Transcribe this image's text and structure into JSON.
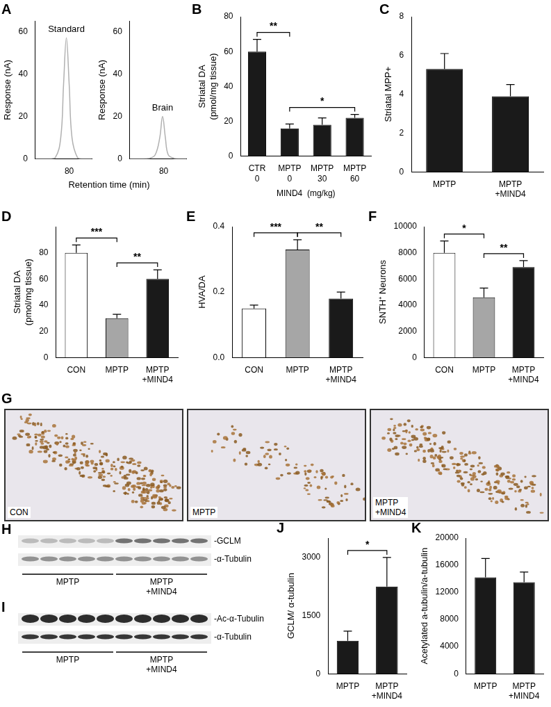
{
  "chart_data": [
    {
      "panel": "A",
      "type": "line",
      "annotation": "Standard",
      "ylabel": "Response (nA)",
      "xlabel": "Retention time (min)",
      "x": [
        74,
        76,
        77.5,
        78.5,
        79,
        79.5,
        80,
        80.5,
        81.5,
        82.5,
        84
      ],
      "values": [
        0,
        0,
        0.5,
        10,
        35,
        57,
        35,
        10,
        0.5,
        0,
        0
      ],
      "color": "#b0b0b0",
      "xlim": [
        74,
        84
      ],
      "xticks": [
        80
      ],
      "ylim": [
        0,
        65
      ],
      "yticks": [
        0,
        20,
        40,
        60
      ],
      "grid": false
    },
    {
      "type": "line",
      "annotation": "Brain",
      "ylabel": "Response (nA)",
      "x": [
        74,
        76,
        77.5,
        78.5,
        79.3,
        79.8,
        80.3,
        80.8,
        81.8,
        82.8,
        84
      ],
      "values": [
        0,
        0,
        0.3,
        2,
        10,
        20,
        10,
        2,
        0.3,
        0,
        0
      ],
      "color": "#b0b0b0",
      "xlim": [
        74,
        84
      ],
      "xticks": [
        80
      ],
      "ylim": [
        0,
        65
      ],
      "yticks": [
        0,
        20,
        40,
        60
      ],
      "grid": false
    },
    {
      "panel": "B",
      "type": "bar",
      "ylabel": [
        "Striatal DA",
        "(pmol/mg tissue)"
      ],
      "xlabel": "MIND4  (mg/kg)",
      "categories": [
        [
          "CTR",
          "0"
        ],
        [
          "MPTP",
          "0"
        ],
        [
          "MPTP",
          "30"
        ],
        [
          "MPTP",
          "60"
        ]
      ],
      "values": [
        60,
        16,
        18,
        22
      ],
      "errors": [
        7,
        2.5,
        4,
        2
      ],
      "color": "#1a1a1a",
      "ylim": [
        0,
        80
      ],
      "yticks": [
        0,
        20,
        40,
        60,
        80
      ],
      "grid": false,
      "significance": [
        {
          "from": 0,
          "to": 1,
          "label": "**"
        },
        {
          "from": 1,
          "to": 3,
          "label": "*"
        }
      ]
    },
    {
      "panel": "C",
      "type": "bar",
      "ylabel": "Striatal MPP+",
      "categories": [
        "MPTP",
        [
          "MPTP",
          "+MIND4"
        ]
      ],
      "values": [
        5.3,
        3.9
      ],
      "errors": [
        0.8,
        0.6
      ],
      "color": "#1a1a1a",
      "ylim": [
        0,
        8
      ],
      "yticks": [
        0,
        2,
        4,
        6,
        8
      ],
      "grid": false
    },
    {
      "panel": "D",
      "type": "bar",
      "ylabel": [
        "Striatal DA",
        "(pmol/mg tissue)"
      ],
      "categories": [
        "CON",
        "MPTP",
        [
          "MPTP",
          "+MIND4"
        ]
      ],
      "values": [
        80,
        30,
        60
      ],
      "errors": [
        6,
        3,
        7
      ],
      "colors": [
        "#ffffff",
        "#a6a6a6",
        "#1a1a1a"
      ],
      "ylim": [
        0,
        100
      ],
      "yticks": [
        0,
        20,
        40,
        60,
        80
      ],
      "grid": false,
      "significance": [
        {
          "from": 0,
          "to": 1,
          "label": "***"
        },
        {
          "from": 1,
          "to": 2,
          "label": "**"
        }
      ]
    },
    {
      "panel": "E",
      "type": "bar",
      "ylabel": "HVA/DA",
      "categories": [
        "CON",
        "MPTP",
        [
          "MPTP",
          "+MIND4"
        ]
      ],
      "values": [
        0.15,
        0.33,
        0.18
      ],
      "errors": [
        0.01,
        0.03,
        0.02
      ],
      "colors": [
        "#ffffff",
        "#a6a6a6",
        "#1a1a1a"
      ],
      "ylim": [
        0,
        0.4
      ],
      "yticks": [
        {
          "value": 0,
          "label": "0.0"
        },
        {
          "value": 0.2,
          "label": "0.2"
        },
        {
          "value": 0.4,
          "label": "0.4"
        }
      ],
      "grid": false,
      "significance": [
        {
          "from": 0,
          "to": 1,
          "label": "***"
        },
        {
          "from": 1,
          "to": 2,
          "label": "**"
        }
      ]
    },
    {
      "panel": "F",
      "type": "bar",
      "ylabel": "SNTH⁺ Neurons",
      "categories": [
        "CON",
        "MPTP",
        [
          "MPTP",
          "+MIND4"
        ]
      ],
      "values": [
        8000,
        4600,
        6900
      ],
      "errors": [
        900,
        700,
        500
      ],
      "colors": [
        "#ffffff",
        "#a6a6a6",
        "#1a1a1a"
      ],
      "ylim": [
        0,
        10000
      ],
      "yticks": [
        0,
        2000,
        4000,
        6000,
        8000,
        10000
      ],
      "grid": false,
      "significance": [
        {
          "from": 0,
          "to": 1,
          "label": "*"
        },
        {
          "from": 1,
          "to": 2,
          "label": "**"
        }
      ]
    },
    {
      "panel": "J",
      "type": "bar",
      "ylabel": "GCLM/ α-tubulin",
      "categories": [
        "MPTP",
        [
          "MPTP",
          "+MIND4"
        ]
      ],
      "values": [
        850,
        2250
      ],
      "errors": [
        250,
        750
      ],
      "color": "#1a1a1a",
      "ylim": [
        0,
        3500
      ],
      "yticks": [
        0,
        1500,
        3000
      ],
      "grid": false,
      "significance": [
        {
          "from": 0,
          "to": 1,
          "label": "*"
        }
      ]
    },
    {
      "panel": "K",
      "type": "bar",
      "ylabel": "Acetylated a-tubulin/a-tubulin",
      "categories": [
        "MPTP",
        [
          "MPTP",
          "+MIND4"
        ]
      ],
      "values": [
        14200,
        13500
      ],
      "errors": [
        2800,
        1500
      ],
      "color": "#1a1a1a",
      "ylim": [
        0,
        20000
      ],
      "yticks": [
        0,
        4000,
        8000,
        12000,
        16000,
        20000
      ],
      "grid": false
    }
  ],
  "images": {
    "panel": "G",
    "labels": [
      "CON",
      "MPTP",
      [
        "MPTP",
        "+MIND4"
      ]
    ]
  },
  "blots": [
    {
      "panel": "H",
      "bands": [
        "-GCLM",
        "-α-Tubulin"
      ],
      "groups": [
        "MPTP",
        [
          "MPTP",
          "+MIND4"
        ]
      ]
    },
    {
      "panel": "I",
      "bands": [
        "-Ac-α-Tubulin",
        "-α-Tubulin"
      ],
      "groups": [
        "MPTP",
        [
          "MPTP",
          "+MIND4"
        ]
      ]
    }
  ]
}
